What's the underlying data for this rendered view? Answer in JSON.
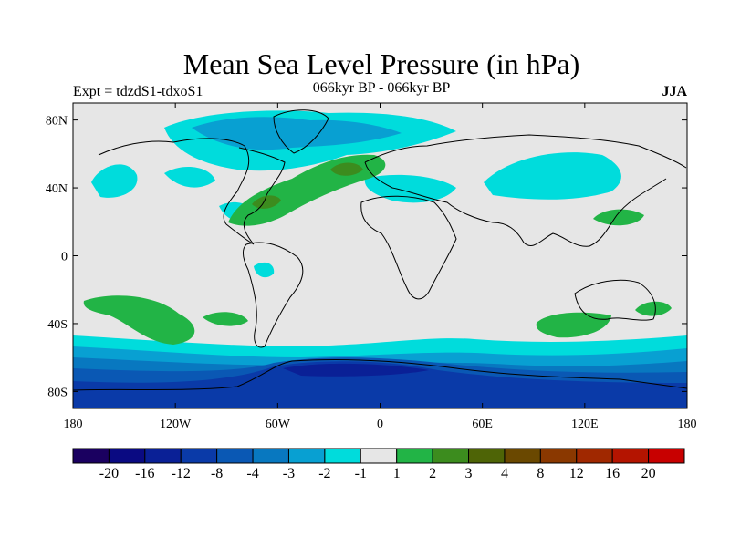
{
  "title": "Mean Sea Level Pressure (in hPa)",
  "subtitle_left": "Expt = tdzdS1-tdxoS1",
  "subtitle_center": "066kyr BP - 066kyr BP",
  "subtitle_right": "JJA",
  "chart_data": {
    "type": "heatmap",
    "projection": "cylindrical-equidistant",
    "lon_range": [
      -180,
      180
    ],
    "lat_range": [
      -90,
      90
    ],
    "x_ticks": [
      {
        "lon": -180,
        "label": "180"
      },
      {
        "lon": -120,
        "label": "120W"
      },
      {
        "lon": -60,
        "label": "60W"
      },
      {
        "lon": 0,
        "label": "0"
      },
      {
        "lon": 60,
        "label": "60E"
      },
      {
        "lon": 120,
        "label": "120E"
      },
      {
        "lon": 180,
        "label": "180"
      }
    ],
    "y_ticks": [
      {
        "lat": 80,
        "label": "80N"
      },
      {
        "lat": 40,
        "label": "40N"
      },
      {
        "lat": 0,
        "label": "0"
      },
      {
        "lat": -40,
        "label": "40S"
      },
      {
        "lat": -80,
        "label": "80S"
      }
    ],
    "colorbar": {
      "colors": [
        "#1a0060",
        "#0a0a82",
        "#0a2096",
        "#0a3aa8",
        "#0a58b4",
        "#0878c0",
        "#08a0d2",
        "#00dcdc",
        "#e6e6e6",
        "#22b446",
        "#3c8c1e",
        "#4e6406",
        "#6a4800",
        "#8a3800",
        "#a02800",
        "#b41400",
        "#c80000"
      ],
      "labels": [
        "-20",
        "-16",
        "-12",
        "-8",
        "-4",
        "-3",
        "-2",
        "-1",
        "1",
        "2",
        "3",
        "4",
        "8",
        "12",
        "16",
        "20"
      ]
    },
    "regions": [
      {
        "name": "north-atlantic-high",
        "level": 2
      },
      {
        "name": "north-atlantic-core",
        "level": 3
      },
      {
        "name": "north-pacific-low",
        "level": -1
      },
      {
        "name": "arctic-low",
        "level": -2
      },
      {
        "name": "siberia-low",
        "level": -1
      },
      {
        "name": "south-pacific-high",
        "level": 2
      },
      {
        "name": "south-indian-high",
        "level": 2
      },
      {
        "name": "southern-ocean-low",
        "level": -4
      },
      {
        "name": "antarctic-low",
        "level": -8
      }
    ]
  }
}
